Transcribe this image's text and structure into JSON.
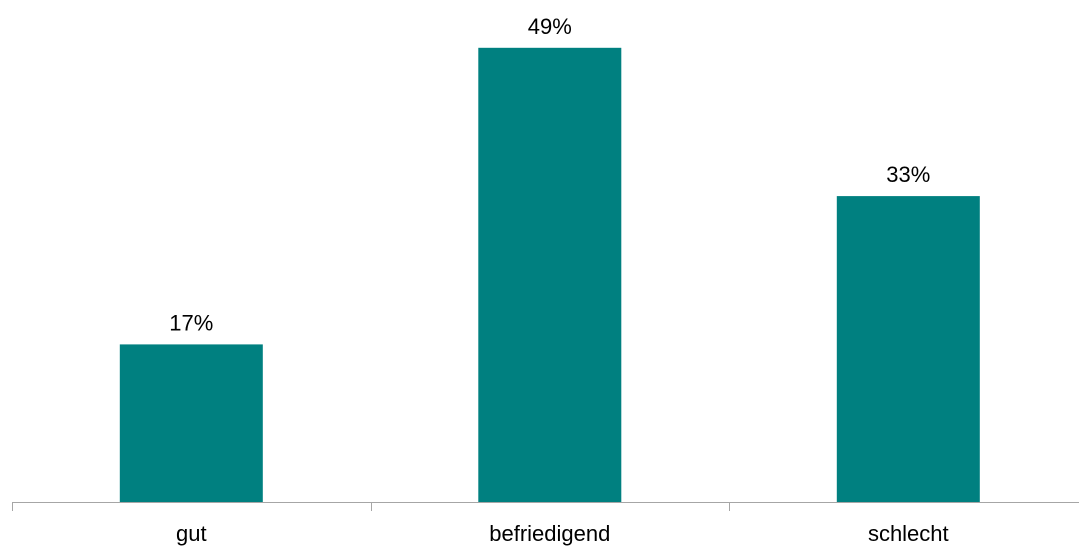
{
  "chart_data": {
    "type": "bar",
    "categories": [
      "gut",
      "befriedigend",
      "schlecht"
    ],
    "values": [
      17,
      49,
      33
    ],
    "value_labels": [
      "17%",
      "49%",
      "33%"
    ],
    "ylim": [
      0,
      52
    ],
    "grid": false,
    "legend": "none",
    "colors": {
      "bar": "#008080",
      "axis": "#a6a6a6",
      "text": "#000000"
    }
  }
}
